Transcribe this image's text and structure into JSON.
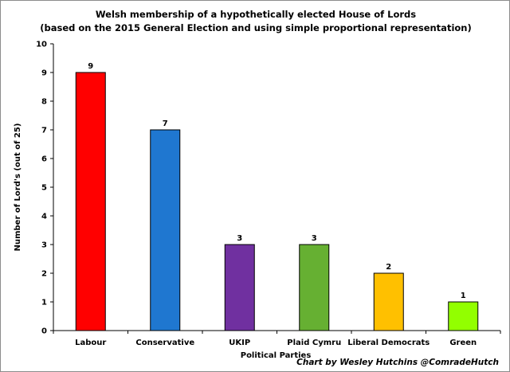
{
  "chart_data": {
    "type": "bar",
    "title": "Welsh membership of a hypothetically elected House of Lords",
    "subtitle": "(based on the 2015 General Election and using simple proportional representation)",
    "xlabel": "Political Parties",
    "ylabel": "Number of Lord's (out of 25)",
    "categories": [
      "Labour",
      "Conservative",
      "UKIP",
      "Plaid Cymru",
      "Liberal Democrats",
      "Green"
    ],
    "values": [
      9,
      7,
      3,
      3,
      2,
      1
    ],
    "colors": [
      "#ff0000",
      "#1f77d0",
      "#7030a0",
      "#66b032",
      "#ffc000",
      "#92ff00"
    ],
    "ylim": [
      0,
      10
    ],
    "yticks": [
      0,
      1,
      2,
      3,
      4,
      5,
      6,
      7,
      8,
      9,
      10
    ],
    "grid": false,
    "legend": "none",
    "credit": "Chart by Wesley Hutchins @ComradeHutch"
  }
}
